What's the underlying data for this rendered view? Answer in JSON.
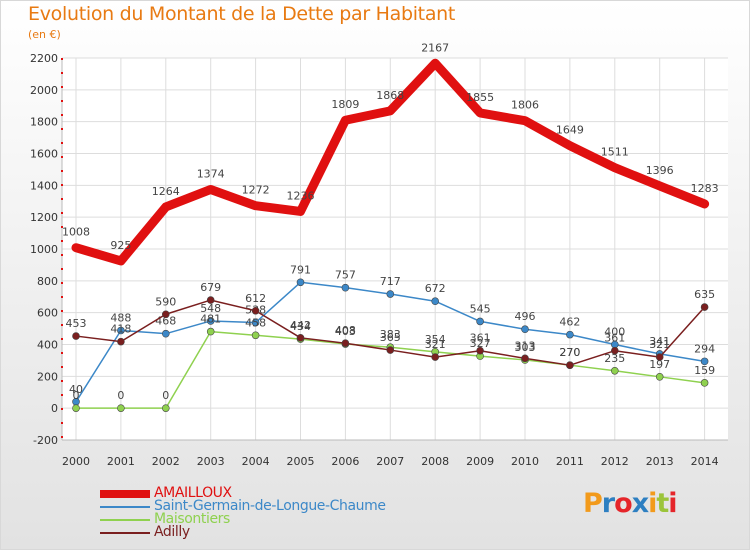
{
  "header": {
    "title": "Evolution du Montant de la Dette par Habitant",
    "subtitle": "(en €)"
  },
  "brand": {
    "logo": "Proxiti",
    "colors": [
      "#f29a1b",
      "#2d7fc1",
      "#e5252a",
      "#2d7fc1",
      "#f29a1b",
      "#9bc43a",
      "#e5252a"
    ]
  },
  "chart_data": {
    "type": "line",
    "categories": [
      "2000",
      "2001",
      "2002",
      "2003",
      "2004",
      "2005",
      "2006",
      "2007",
      "2008",
      "2009",
      "2010",
      "2011",
      "2012",
      "2013",
      "2014"
    ],
    "ylim": [
      -200,
      2200
    ],
    "yticks": [
      "-200",
      "0",
      "200",
      "400",
      "600",
      "800",
      "1000",
      "1200",
      "1400",
      "1600",
      "1800",
      "2000",
      "2200"
    ],
    "ytick_values": [
      -200,
      0,
      200,
      400,
      600,
      800,
      1000,
      1200,
      1400,
      1600,
      1800,
      2000,
      2200
    ],
    "grid": true,
    "legend_position": "bottom-left",
    "series": [
      {
        "name": "Saint-Germain-de-Longue-Chaume",
        "color": "#3c88c8",
        "values": [
          40,
          488,
          468,
          548,
          538,
          791,
          757,
          717,
          672,
          545,
          496,
          462,
          400,
          341,
          294
        ],
        "labels": [
          "40",
          "488",
          "468",
          "548",
          "538",
          "791",
          "757",
          "717",
          "672",
          "545",
          "496",
          "462",
          "400",
          "341",
          "294"
        ]
      },
      {
        "name": "Maisontiers",
        "color": "#8fd14f",
        "values": [
          0,
          0,
          0,
          481,
          458,
          434,
          403,
          383,
          354,
          327,
          303,
          270,
          235,
          197,
          159
        ],
        "labels": [
          "0",
          "0",
          "0",
          "481",
          "458",
          "434",
          "403",
          "383",
          "354",
          "327",
          "303",
          "270",
          "235",
          "197",
          "159"
        ]
      },
      {
        "name": "Adilly",
        "color": "#7a1f1f",
        "values": [
          453,
          418,
          590,
          679,
          612,
          442,
          408,
          365,
          321,
          361,
          313,
          270,
          361,
          321,
          635
        ],
        "labels": [
          "453",
          "418",
          "590",
          "679",
          "612",
          "442",
          "408",
          "365",
          "321",
          "361",
          "313",
          "270",
          "361",
          "321",
          "635"
        ]
      },
      {
        "name": "AMAILLOUX",
        "color": "#e01010",
        "values": [
          1008,
          925,
          1264,
          1374,
          1272,
          1236,
          1809,
          1868,
          2167,
          1855,
          1806,
          1649,
          1511,
          1396,
          1283
        ],
        "labels": [
          "1008",
          "925",
          "1264",
          "1374",
          "1272",
          "1236",
          "1809",
          "1868",
          "2167",
          "1855",
          "1806",
          "1649",
          "1511",
          "1396",
          "1283"
        ]
      }
    ],
    "legend": [
      {
        "name": "AMAILLOUX",
        "color": "#e01010",
        "text_color": "#e01010",
        "thick": true
      },
      {
        "name": "Saint-Germain-de-Longue-Chaume",
        "color": "#3c88c8",
        "text_color": "#3c88c8",
        "thick": false
      },
      {
        "name": "Maisontiers",
        "color": "#8fd14f",
        "text_color": "#8fd14f",
        "thick": false
      },
      {
        "name": "Adilly",
        "color": "#7a1f1f",
        "text_color": "#7a1f1f",
        "thick": false
      }
    ]
  }
}
